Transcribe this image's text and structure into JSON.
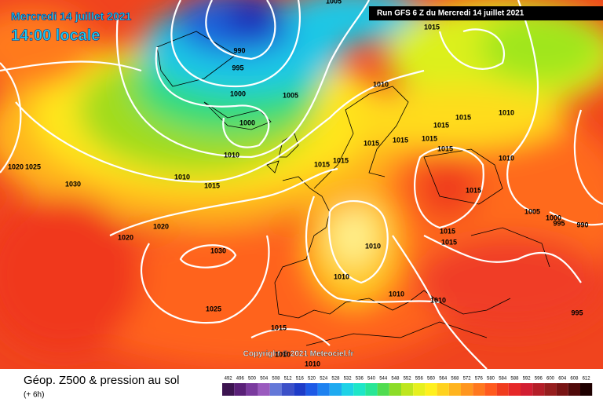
{
  "header": {
    "date": "Mercredi 14 juillet 2021",
    "time": "14:00 locale",
    "run": "Run GFS 6 Z du Mercredi 14 juillet 2021"
  },
  "isobars": [
    1005,
    990,
    995,
    1000,
    1000,
    1005,
    1010,
    1010,
    1015,
    1030,
    1020,
    1025,
    1020,
    1020,
    1030,
    1025,
    1015,
    1010,
    1010,
    1010,
    1010,
    1010,
    1010,
    1015,
    1015,
    1015,
    1015,
    1015,
    1015,
    1015,
    1015,
    1015,
    1015,
    1015,
    1010,
    1015,
    1010,
    1010,
    1005,
    1000,
    995,
    990,
    995
  ],
  "copyright": "Copyright © 2021 Meteociel.fr",
  "footer": {
    "title": "Géop. Z500 & pression au sol",
    "lead": "(+ 6h)"
  },
  "legend": {
    "labels": [
      492,
      496,
      500,
      504,
      508,
      512,
      516,
      520,
      524,
      528,
      532,
      536,
      540,
      544,
      548,
      552,
      556,
      560,
      564,
      568,
      572,
      576,
      580,
      584,
      588,
      592,
      596,
      600,
      604,
      608,
      612
    ],
    "colors": [
      "#3c1450",
      "#5a2078",
      "#7a3a9e",
      "#9a5abe",
      "#6478d8",
      "#3c50c8",
      "#1e3cc8",
      "#1e5ae6",
      "#1e82f0",
      "#1eaaf0",
      "#1ed2e6",
      "#1ee6c8",
      "#28e696",
      "#50dc50",
      "#8cdc28",
      "#bee61e",
      "#e6f01e",
      "#fff01e",
      "#ffd21e",
      "#ffb41e",
      "#ff961e",
      "#ff781e",
      "#ff5a1e",
      "#f03c1e",
      "#e62828",
      "#d21e32",
      "#b41e28",
      "#961e1e",
      "#781414",
      "#500a0a",
      "#1e0000"
    ]
  }
}
